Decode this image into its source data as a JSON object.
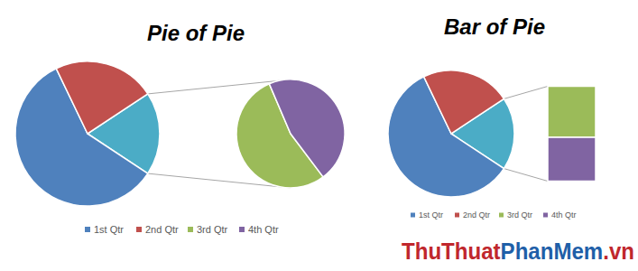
{
  "chart_data": [
    {
      "type": "pie_of_pie",
      "title": "Pie of Pie",
      "categories": [
        "1st Qtr",
        "2nd Qtr",
        "3rd Qtr",
        "4th Qtr"
      ],
      "values": [
        8.2,
        3.2,
        1.4,
        1.2
      ],
      "colors": [
        "#4f81bd",
        "#c0504d",
        "#9bbb59",
        "#8064a2"
      ],
      "legend": "bottom"
    },
    {
      "type": "bar_of_pie",
      "title": "Bar of Pie",
      "categories": [
        "1st Qtr",
        "2nd Qtr",
        "3rd Qtr",
        "4th Qtr"
      ],
      "values": [
        8.2,
        3.2,
        1.4,
        1.2
      ],
      "colors": [
        "#4f81bd",
        "#c0504d",
        "#9bbb59",
        "#8064a2"
      ],
      "legend": "bottom"
    }
  ],
  "watermark": [
    "ThuThuat",
    "PhanMem",
    ".vn"
  ]
}
